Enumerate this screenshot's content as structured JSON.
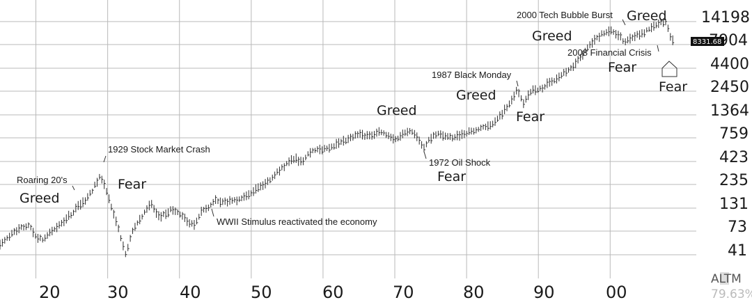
{
  "chart_data": {
    "type": "bar",
    "subtype": "ohlc",
    "scale": "log",
    "grid": true,
    "x_ticks": [
      "20",
      "30",
      "40",
      "50",
      "60",
      "70",
      "80",
      "90",
      "00"
    ],
    "y_ticks": [
      "14198",
      "7904",
      "4400",
      "2450",
      "1364",
      "759",
      "423",
      "235",
      "131",
      "73",
      "41"
    ],
    "ylim": [
      30,
      16000
    ],
    "xlim": [
      1915.0,
      2012.0
    ],
    "last_value_label": "8331.68",
    "series": [
      {
        "x": [
          1915,
          1917,
          1919,
          1920,
          1921,
          1923,
          1925,
          1926,
          1927,
          1928,
          1929,
          1929.8,
          1930.5,
          1931.5,
          1932.5,
          1933.5,
          1934,
          1935,
          1936,
          1937,
          1938,
          1939,
          1940,
          1941,
          1942,
          1943,
          1944,
          1945,
          1946,
          1948,
          1950,
          1952,
          1954,
          1956,
          1957,
          1958,
          1960,
          1962,
          1963,
          1965,
          1966,
          1968,
          1970,
          1972,
          1973,
          1974,
          1975,
          1976,
          1978,
          1980,
          1982,
          1984,
          1986,
          1987,
          1987.9,
          1989,
          1990,
          1993,
          1995,
          1997,
          1999,
          2000,
          2001,
          2002,
          2003,
          2005,
          2007,
          2007.8,
          2008.5,
          2009
        ],
        "values": [
          60,
          85,
          100,
          75,
          70,
          95,
          130,
          160,
          180,
          240,
          330,
          230,
          150,
          90,
          48,
          85,
          100,
          130,
          170,
          120,
          130,
          145,
          130,
          110,
          100,
          135,
          150,
          180,
          170,
          180,
          220,
          270,
          380,
          500,
          450,
          580,
          620,
          700,
          750,
          900,
          850,
          950,
          780,
          1000,
          880,
          620,
          820,
          900,
          810,
          930,
          1020,
          1200,
          1850,
          2600,
          1900,
          2600,
          2600,
          3700,
          4700,
          7500,
          10500,
          11000,
          10200,
          8400,
          9500,
          10800,
          13500,
          13200,
          9000,
          8331.68
        ]
      }
    ],
    "annotations": [
      "Roaring 20's",
      "1929 Stock Market Crash",
      "WWII Stimulus reactivated the economy",
      "1972 Oil Shock",
      "1987 Black Monday",
      "2000 Tech Bubble Burst",
      "2008 Financial Crisis"
    ],
    "sentiment_labels": [
      "Greed",
      "Fear",
      "Greed",
      "Fear",
      "Greed",
      "Fear",
      "Greed",
      "Greed",
      "Fear",
      "Fear"
    ]
  },
  "corner": {
    "line1": "ALTM",
    "line2": "79.63%"
  }
}
